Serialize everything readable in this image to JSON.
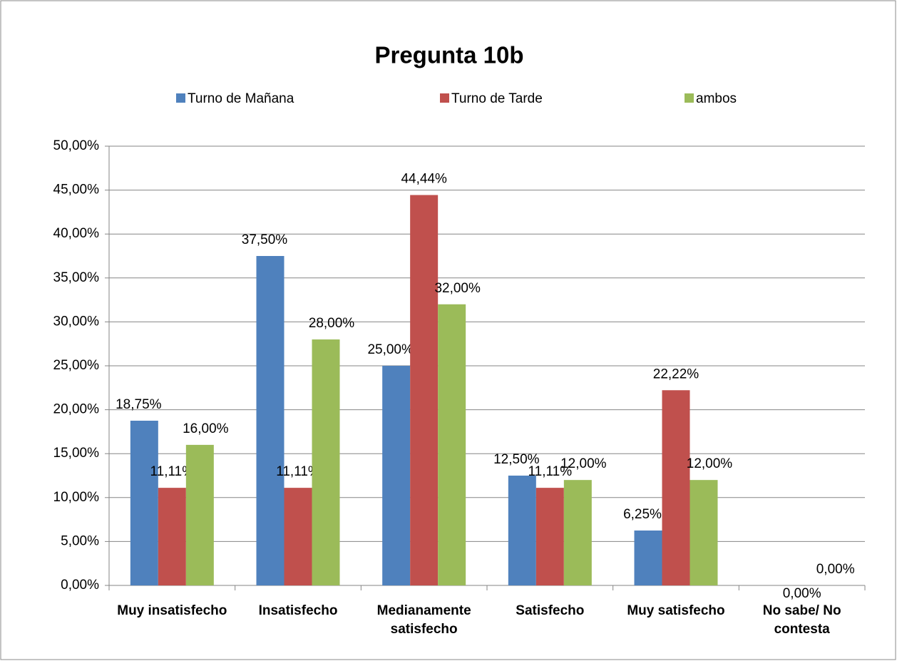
{
  "chart_data": {
    "type": "bar",
    "title": "Pregunta 10b",
    "categories": [
      "Muy insatisfecho",
      "Insatisfecho",
      "Medianamente satisfecho",
      "Satisfecho",
      "Muy satisfecho",
      "No sabe/ No contesta"
    ],
    "series": [
      {
        "name": "Turno de Mañana",
        "color": "#4f81bd",
        "values": [
          18.75,
          37.5,
          25,
          12.5,
          6.25,
          null
        ],
        "value_labels": [
          "18,75%",
          "37,50%",
          "25,00%",
          "12,50%",
          "6,25%",
          null
        ]
      },
      {
        "name": "Turno de Tarde",
        "color": "#c0504d",
        "values": [
          11.11,
          11.11,
          44.44,
          11.11,
          22.22,
          0
        ],
        "value_labels": [
          "11,11%",
          "11,11%",
          "44,44%",
          "11,11%",
          "22,22%",
          "0,00%"
        ]
      },
      {
        "name": "ambos",
        "color": "#9bbb59",
        "values": [
          16,
          28,
          32,
          12,
          12,
          0
        ],
        "value_labels": [
          "16,00%",
          "28,00%",
          "32,00%",
          "12,00%",
          "12,00%",
          "0,00%"
        ]
      }
    ],
    "ylim": [
      0,
      50
    ],
    "yticks": [
      {
        "value": 0,
        "label": "0,00%"
      },
      {
        "value": 5,
        "label": "5,00%"
      },
      {
        "value": 10,
        "label": "10,00%"
      },
      {
        "value": 15,
        "label": "15,00%"
      },
      {
        "value": 20,
        "label": "20,00%"
      },
      {
        "value": 25,
        "label": "25,00%"
      },
      {
        "value": 30,
        "label": "30,00%"
      },
      {
        "value": 35,
        "label": "35,00%"
      },
      {
        "value": 40,
        "label": "40,00%"
      },
      {
        "value": 45,
        "label": "45,00%"
      },
      {
        "value": 50,
        "label": "50,00%"
      }
    ],
    "grid": true,
    "legend": "top"
  }
}
